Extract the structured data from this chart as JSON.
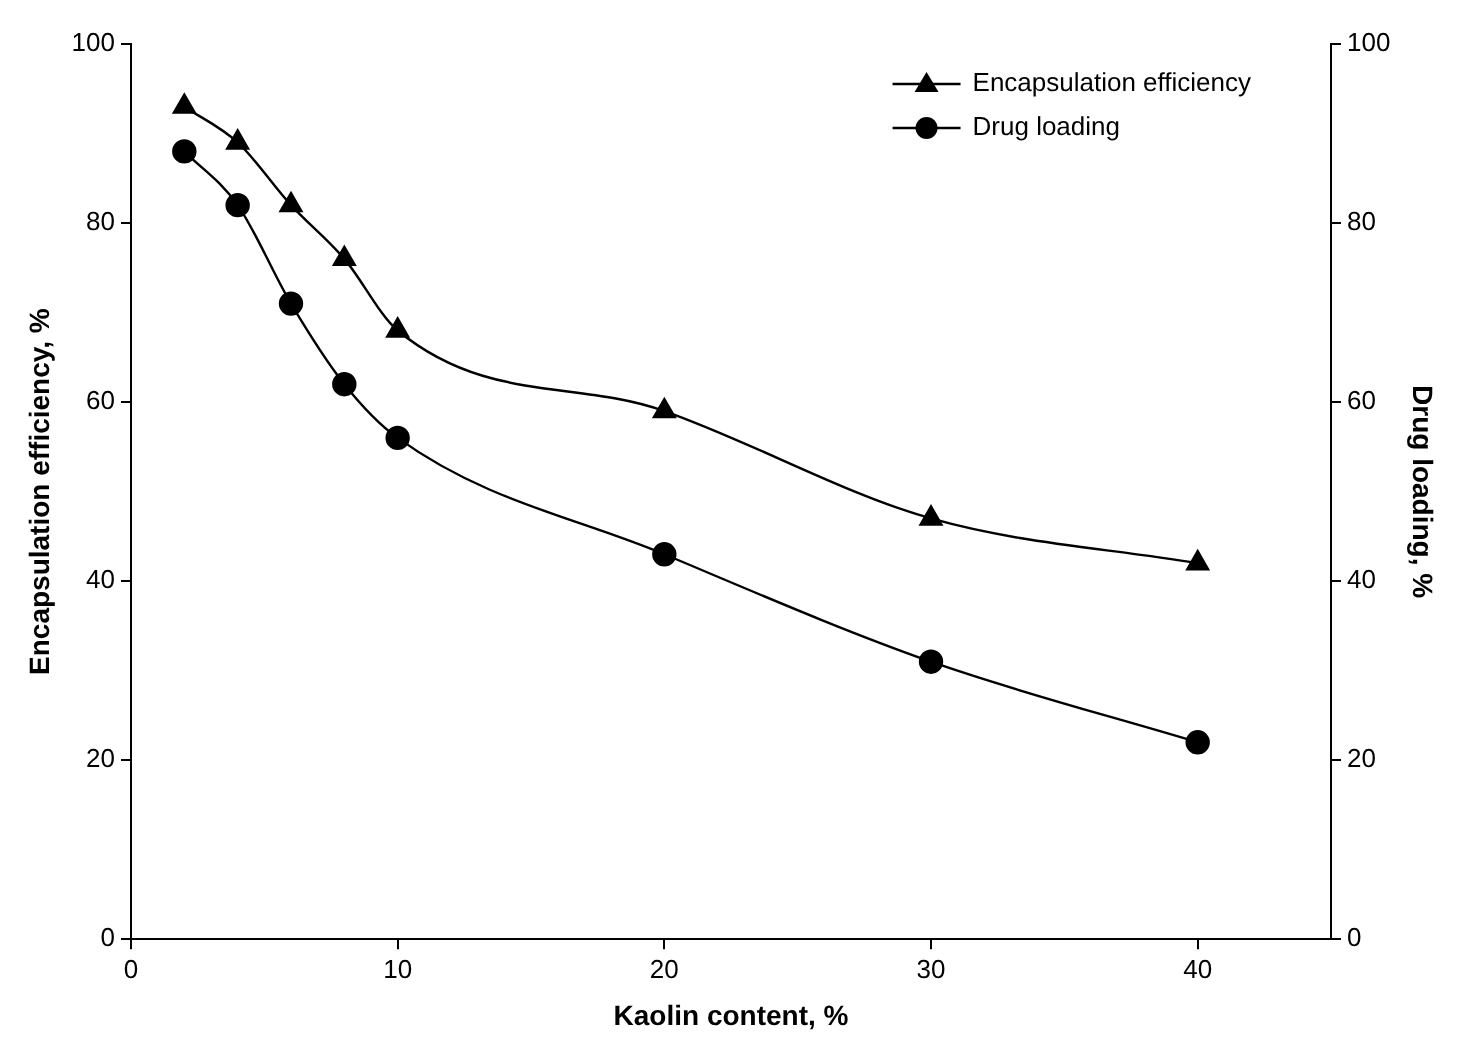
{
  "chart_data": {
    "type": "line",
    "xlabel": "Kaolin content, %",
    "ylabel": "Encapsulation efficiency, %",
    "y2label": "Drug loading, %",
    "x": [
      2,
      4,
      6,
      8,
      10,
      20,
      30,
      40
    ],
    "series": [
      {
        "name": "Encapsulation efficiency",
        "color": "#000000",
        "marker": "triangle",
        "values": [
          93,
          89,
          82,
          76,
          68,
          59,
          47,
          42
        ]
      },
      {
        "name": "Drug loading",
        "color": "#000000",
        "marker": "circle",
        "axis": "y2",
        "values": [
          88,
          82,
          71,
          62,
          56,
          43,
          31,
          22
        ]
      }
    ],
    "xlim": [
      0,
      45
    ],
    "xticks": [
      0,
      10,
      20,
      30,
      40
    ],
    "ylim": [
      0,
      100
    ],
    "yticks": [
      0,
      20,
      40,
      60,
      80,
      100
    ],
    "y2lim": [
      0,
      100
    ],
    "y2ticks": [
      0,
      20,
      40,
      60,
      80,
      100
    ],
    "grid": false,
    "legend": "top right",
    "line_style": "solid"
  }
}
